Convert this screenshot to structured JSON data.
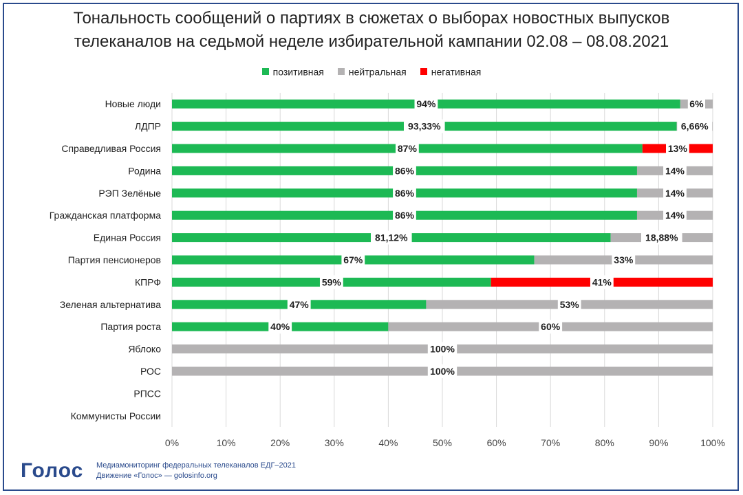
{
  "title": "Тональность сообщений о партиях в сюжетах о выборах новостных выпусков\nтелеканалов на седьмой неделе избирательной кампании 02.08 – 08.08.2021",
  "legend": [
    {
      "label": "позитивная",
      "color": "#1db954"
    },
    {
      "label": "нейтральная",
      "color": "#b4b2b3"
    },
    {
      "label": "негативная",
      "color": "#ff0000"
    }
  ],
  "footer": {
    "logo": "Голос",
    "line1": "Медиамониторинг федеральных телеканалов ЕДГ–2021",
    "line2": "Движение «Голос» — golosinfo.org"
  },
  "chart_data": {
    "type": "bar",
    "orientation": "horizontal",
    "stacked": true,
    "categories": [
      "Новые люди",
      "ЛДПР",
      "Справедливая Россия",
      "Родина",
      "РЭП Зелёные",
      "Гражданская платформа",
      "Единая Россия",
      "Партия пенсионеров",
      "КПРФ",
      "Зеленая альтернатива",
      "Партия роста",
      "Яблоко",
      "РОС",
      "РПСС",
      "Коммунисты России"
    ],
    "series": [
      {
        "name": "позитивная",
        "color": "#1db954",
        "values": [
          94,
          93.33,
          87,
          86,
          86,
          86,
          81.12,
          67,
          59,
          47,
          40,
          0,
          0,
          0,
          0
        ],
        "labels": [
          "94%",
          "93,33%",
          "87%",
          "86%",
          "86%",
          "86%",
          "81,12%",
          "67%",
          "59%",
          "47%",
          "40%",
          "",
          "",
          "",
          ""
        ]
      },
      {
        "name": "нейтральная",
        "color": "#b4b2b3",
        "values": [
          6,
          6.66,
          0,
          14,
          14,
          14,
          18.88,
          33,
          0,
          53,
          60,
          100,
          100,
          0,
          0
        ],
        "labels": [
          "6%",
          "6,66%",
          "",
          "14%",
          "14%",
          "14%",
          "18,88%",
          "33%",
          "",
          "53%",
          "60%",
          "100%",
          "100%",
          "",
          ""
        ]
      },
      {
        "name": "негативная",
        "color": "#ff0000",
        "values": [
          0,
          0,
          13,
          0,
          0,
          0,
          0,
          0,
          41,
          0,
          0,
          0,
          0,
          0,
          0
        ],
        "labels": [
          "",
          "",
          "13%",
          "",
          "",
          "",
          "",
          "",
          "41%",
          "",
          "",
          "",
          "",
          "",
          ""
        ]
      }
    ],
    "xlim": [
      0,
      100
    ],
    "xticks": [
      "0%",
      "10%",
      "20%",
      "30%",
      "40%",
      "50%",
      "60%",
      "70%",
      "80%",
      "90%",
      "100%"
    ],
    "grid": true,
    "legend_position": "top"
  }
}
